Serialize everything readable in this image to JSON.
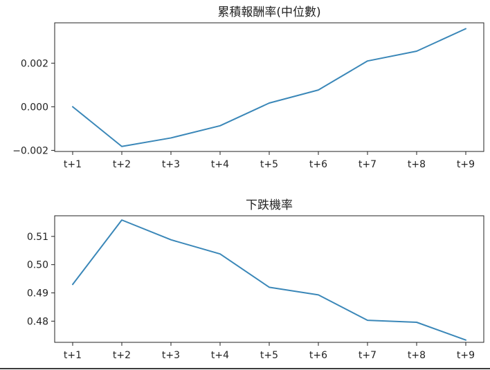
{
  "chart_data": [
    {
      "type": "line",
      "title": "累積報酬率(中位數)",
      "xlabel": "",
      "ylabel": "",
      "categories": [
        "t+1",
        "t+2",
        "t+3",
        "t+4",
        "t+5",
        "t+6",
        "t+7",
        "t+8",
        "t+9"
      ],
      "series": [
        {
          "values": [
            0.0,
            -0.00182,
            -0.00143,
            -0.00087,
            0.00017,
            0.00077,
            0.0021,
            0.00255,
            0.00358
          ]
        }
      ],
      "yticks": [
        -0.002,
        0.0,
        0.002
      ],
      "ytick_labels": [
        "−0.002",
        "0.000",
        "0.002"
      ],
      "ylim": [
        -0.00205,
        0.00385
      ],
      "grid": false,
      "color": "#3a87b8"
    },
    {
      "type": "line",
      "title": "下跌機率",
      "xlabel": "",
      "ylabel": "",
      "categories": [
        "t+1",
        "t+2",
        "t+3",
        "t+4",
        "t+5",
        "t+6",
        "t+7",
        "t+8",
        "t+9"
      ],
      "series": [
        {
          "values": [
            0.493,
            0.5158,
            0.5088,
            0.5038,
            0.492,
            0.4893,
            0.4803,
            0.4796,
            0.4733
          ]
        }
      ],
      "yticks": [
        0.48,
        0.49,
        0.5,
        0.51
      ],
      "ytick_labels": [
        "0.48",
        "0.49",
        "0.50",
        "0.51"
      ],
      "ylim": [
        0.4725,
        0.5173
      ],
      "grid": false,
      "color": "#3a87b8"
    }
  ]
}
